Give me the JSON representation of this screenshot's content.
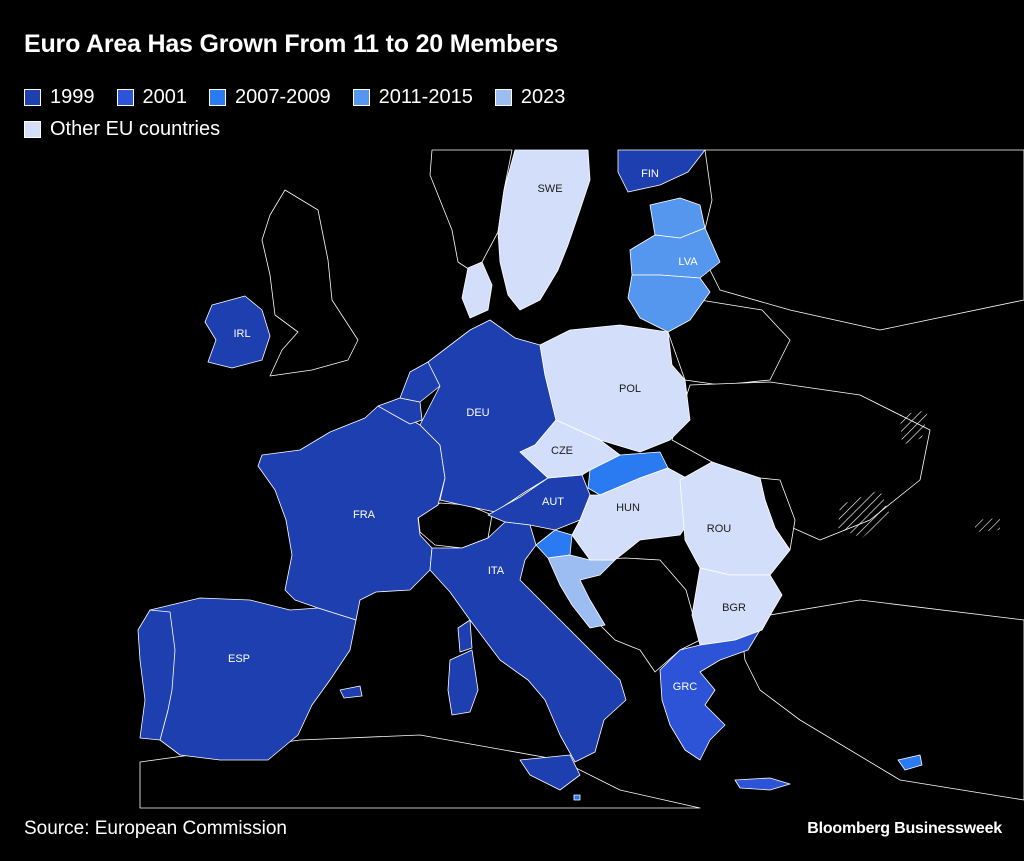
{
  "title": "Euro Area Has Grown From 11 to 20 Members",
  "legend": [
    {
      "label": "1999",
      "color": "#1d3fb0"
    },
    {
      "label": "2001",
      "color": "#2d54d6"
    },
    {
      "label": "2007-2009",
      "color": "#2a7bf2"
    },
    {
      "label": "2011-2015",
      "color": "#5597ee"
    },
    {
      "label": "2023",
      "color": "#9cbdf1"
    },
    {
      "label": "Other EU countries",
      "color": "#d3defa"
    }
  ],
  "countries": {
    "fin": "FIN",
    "swe": "SWE",
    "lva": "LVA",
    "irl": "IRL",
    "pol": "POL",
    "deu": "DEU",
    "cze": "CZE",
    "fra": "FRA",
    "aut": "AUT",
    "hun": "HUN",
    "rou": "ROU",
    "ita": "ITA",
    "bgr": "BGR",
    "esp": "ESP",
    "grc": "GRC"
  },
  "colors": {
    "background": "#000000",
    "non_eu_land": "#000000",
    "border": "#ffffff",
    "label_on_dark": "#ffffff",
    "label_on_light": "#1a1a1a"
  },
  "source": "Source: European Commission",
  "brand": "Bloomberg Businessweek"
}
